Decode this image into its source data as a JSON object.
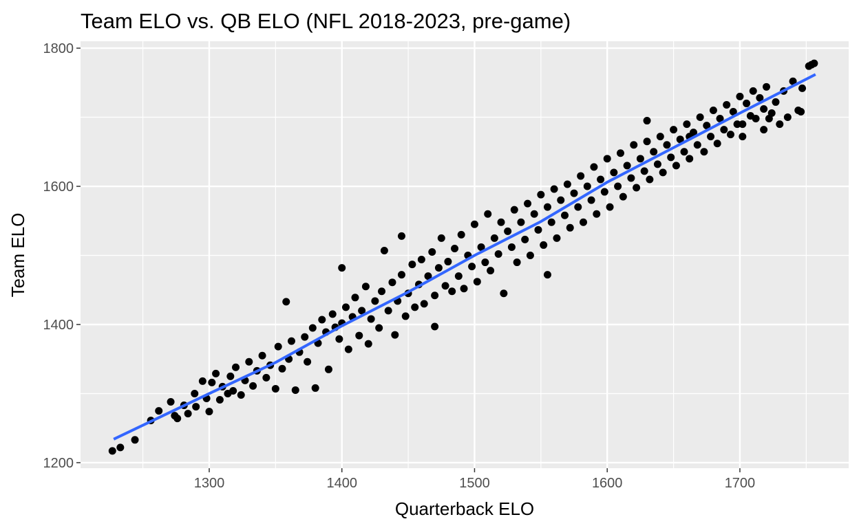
{
  "chart_data": {
    "type": "scatter",
    "title": "Team ELO vs. QB ELO (NFL 2018-2023, pre-game)",
    "xlabel": "Quarterback ELO",
    "ylabel": "Team ELO",
    "xlim": [
      1203,
      1782
    ],
    "ylim": [
      1192,
      1810
    ],
    "x_ticks": [
      1300,
      1400,
      1500,
      1600,
      1700
    ],
    "y_ticks": [
      1200,
      1400,
      1600,
      1800
    ],
    "grid": true,
    "legend": "none",
    "colors": {
      "panel": "#ebebeb",
      "grid": "#ffffff",
      "points": "#000000",
      "trend": "#3366ff"
    },
    "series": [
      {
        "values": [
          [
            1227,
            1217
          ],
          [
            1233,
            1222
          ],
          [
            1244,
            1233
          ],
          [
            1256,
            1261
          ],
          [
            1262,
            1275
          ],
          [
            1271,
            1288
          ],
          [
            1274,
            1268
          ],
          [
            1276,
            1264
          ],
          [
            1281,
            1283
          ],
          [
            1284,
            1271
          ],
          [
            1289,
            1300
          ],
          [
            1290,
            1281
          ],
          [
            1295,
            1318
          ],
          [
            1298,
            1293
          ],
          [
            1300,
            1274
          ],
          [
            1302,
            1316
          ],
          [
            1305,
            1329
          ],
          [
            1308,
            1291
          ],
          [
            1310,
            1310
          ],
          [
            1314,
            1300
          ],
          [
            1316,
            1325
          ],
          [
            1318,
            1304
          ],
          [
            1320,
            1338
          ],
          [
            1324,
            1298
          ],
          [
            1327,
            1319
          ],
          [
            1330,
            1346
          ],
          [
            1333,
            1311
          ],
          [
            1336,
            1333
          ],
          [
            1340,
            1355
          ],
          [
            1343,
            1323
          ],
          [
            1346,
            1341
          ],
          [
            1350,
            1307
          ],
          [
            1352,
            1368
          ],
          [
            1355,
            1336
          ],
          [
            1358,
            1433
          ],
          [
            1360,
            1350
          ],
          [
            1362,
            1376
          ],
          [
            1365,
            1305
          ],
          [
            1368,
            1360
          ],
          [
            1372,
            1382
          ],
          [
            1374,
            1346
          ],
          [
            1378,
            1395
          ],
          [
            1380,
            1308
          ],
          [
            1382,
            1373
          ],
          [
            1385,
            1407
          ],
          [
            1388,
            1389
          ],
          [
            1390,
            1335
          ],
          [
            1393,
            1415
          ],
          [
            1395,
            1396
          ],
          [
            1398,
            1379
          ],
          [
            1400,
            1482
          ],
          [
            1400,
            1402
          ],
          [
            1403,
            1425
          ],
          [
            1405,
            1364
          ],
          [
            1408,
            1411
          ],
          [
            1410,
            1439
          ],
          [
            1413,
            1384
          ],
          [
            1415,
            1420
          ],
          [
            1418,
            1455
          ],
          [
            1420,
            1372
          ],
          [
            1422,
            1408
          ],
          [
            1425,
            1434
          ],
          [
            1428,
            1395
          ],
          [
            1430,
            1448
          ],
          [
            1432,
            1507
          ],
          [
            1435,
            1420
          ],
          [
            1438,
            1461
          ],
          [
            1440,
            1385
          ],
          [
            1442,
            1434
          ],
          [
            1445,
            1528
          ],
          [
            1445,
            1472
          ],
          [
            1448,
            1412
          ],
          [
            1450,
            1445
          ],
          [
            1453,
            1487
          ],
          [
            1455,
            1425
          ],
          [
            1458,
            1458
          ],
          [
            1460,
            1494
          ],
          [
            1462,
            1430
          ],
          [
            1465,
            1470
          ],
          [
            1468,
            1505
          ],
          [
            1470,
            1397
          ],
          [
            1470,
            1442
          ],
          [
            1473,
            1482
          ],
          [
            1475,
            1525
          ],
          [
            1478,
            1456
          ],
          [
            1480,
            1491
          ],
          [
            1483,
            1448
          ],
          [
            1485,
            1510
          ],
          [
            1488,
            1470
          ],
          [
            1490,
            1530
          ],
          [
            1492,
            1452
          ],
          [
            1495,
            1500
          ],
          [
            1498,
            1484
          ],
          [
            1500,
            1545
          ],
          [
            1502,
            1462
          ],
          [
            1505,
            1512
          ],
          [
            1508,
            1490
          ],
          [
            1510,
            1560
          ],
          [
            1512,
            1478
          ],
          [
            1515,
            1525
          ],
          [
            1518,
            1502
          ],
          [
            1520,
            1548
          ],
          [
            1522,
            1445
          ],
          [
            1525,
            1535
          ],
          [
            1528,
            1512
          ],
          [
            1530,
            1566
          ],
          [
            1532,
            1490
          ],
          [
            1535,
            1548
          ],
          [
            1538,
            1523
          ],
          [
            1540,
            1575
          ],
          [
            1542,
            1500
          ],
          [
            1545,
            1560
          ],
          [
            1548,
            1537
          ],
          [
            1550,
            1588
          ],
          [
            1552,
            1515
          ],
          [
            1555,
            1472
          ],
          [
            1555,
            1570
          ],
          [
            1558,
            1548
          ],
          [
            1560,
            1596
          ],
          [
            1562,
            1525
          ],
          [
            1565,
            1580
          ],
          [
            1568,
            1558
          ],
          [
            1570,
            1603
          ],
          [
            1572,
            1540
          ],
          [
            1575,
            1590
          ],
          [
            1578,
            1570
          ],
          [
            1580,
            1615
          ],
          [
            1582,
            1548
          ],
          [
            1585,
            1600
          ],
          [
            1588,
            1580
          ],
          [
            1590,
            1628
          ],
          [
            1592,
            1560
          ],
          [
            1595,
            1610
          ],
          [
            1598,
            1592
          ],
          [
            1600,
            1640
          ],
          [
            1602,
            1570
          ],
          [
            1605,
            1620
          ],
          [
            1608,
            1600
          ],
          [
            1610,
            1648
          ],
          [
            1612,
            1585
          ],
          [
            1615,
            1630
          ],
          [
            1618,
            1612
          ],
          [
            1620,
            1660
          ],
          [
            1622,
            1598
          ],
          [
            1625,
            1640
          ],
          [
            1628,
            1622
          ],
          [
            1630,
            1665
          ],
          [
            1632,
            1610
          ],
          [
            1635,
            1650
          ],
          [
            1638,
            1632
          ],
          [
            1640,
            1672
          ],
          [
            1642,
            1620
          ],
          [
            1645,
            1660
          ],
          [
            1648,
            1642
          ],
          [
            1650,
            1682
          ],
          [
            1652,
            1630
          ],
          [
            1655,
            1668
          ],
          [
            1658,
            1650
          ],
          [
            1660,
            1690
          ],
          [
            1662,
            1640
          ],
          [
            1665,
            1678
          ],
          [
            1668,
            1660
          ],
          [
            1670,
            1700
          ],
          [
            1673,
            1650
          ],
          [
            1675,
            1688
          ],
          [
            1678,
            1672
          ],
          [
            1680,
            1710
          ],
          [
            1683,
            1662
          ],
          [
            1685,
            1698
          ],
          [
            1688,
            1682
          ],
          [
            1690,
            1718
          ],
          [
            1693,
            1675
          ],
          [
            1695,
            1708
          ],
          [
            1698,
            1690
          ],
          [
            1700,
            1730
          ],
          [
            1702,
            1690
          ],
          [
            1705,
            1720
          ],
          [
            1708,
            1702
          ],
          [
            1710,
            1738
          ],
          [
            1712,
            1698
          ],
          [
            1715,
            1728
          ],
          [
            1718,
            1712
          ],
          [
            1720,
            1744
          ],
          [
            1724,
            1706
          ],
          [
            1727,
            1722
          ],
          [
            1730,
            1690
          ],
          [
            1733,
            1738
          ],
          [
            1736,
            1700
          ],
          [
            1740,
            1752
          ],
          [
            1744,
            1710
          ],
          [
            1747,
            1742
          ],
          [
            1752,
            1774
          ],
          [
            1754,
            1776
          ],
          [
            1756,
            1778
          ],
          [
            1662,
            1672
          ],
          [
            1702,
            1672
          ],
          [
            1718,
            1682
          ],
          [
            1746,
            1708
          ],
          [
            1722,
            1698
          ],
          [
            1630,
            1695
          ]
        ]
      }
    ],
    "trend": {
      "x": [
        1228,
        1300,
        1350,
        1400,
        1450,
        1500,
        1550,
        1600,
        1650,
        1700,
        1757
      ],
      "y": [
        1234,
        1300,
        1345,
        1398,
        1447,
        1500,
        1549,
        1606,
        1656,
        1706,
        1762
      ]
    }
  }
}
